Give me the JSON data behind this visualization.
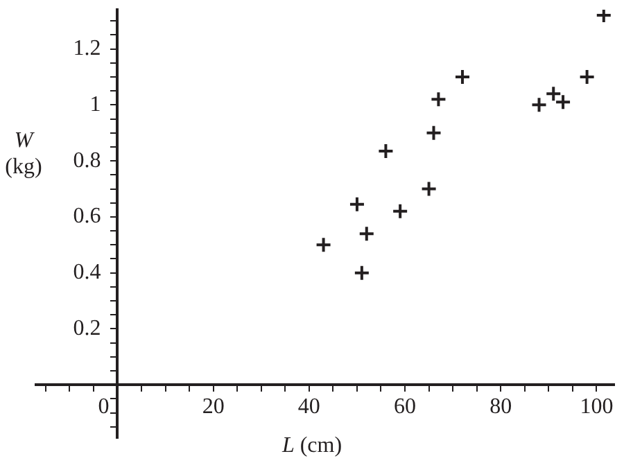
{
  "chart_data": {
    "type": "scatter",
    "xlabel": "L (cm)",
    "ylabel": "W (kg)",
    "marker": "cross",
    "grid": false,
    "legend": false,
    "xlim": [
      -17,
      103.7
    ],
    "ylim": [
      -0.19,
      1.34
    ],
    "xticks": [
      {
        "value": -15,
        "label": null
      },
      {
        "value": -10,
        "label": null
      },
      {
        "value": -5,
        "label": null
      },
      0,
      {
        "value": 5,
        "label": null
      },
      {
        "value": 10,
        "label": null
      },
      {
        "value": 15,
        "label": null
      },
      20,
      {
        "value": 25,
        "label": null
      },
      {
        "value": 30,
        "label": null
      },
      {
        "value": 35,
        "label": null
      },
      40,
      {
        "value": 45,
        "label": null
      },
      {
        "value": 50,
        "label": null
      },
      {
        "value": 55,
        "label": null
      },
      60,
      {
        "value": 65,
        "label": null
      },
      {
        "value": 70,
        "label": null
      },
      {
        "value": 75,
        "label": null
      },
      80,
      {
        "value": 85,
        "label": null
      },
      {
        "value": 90,
        "label": null
      },
      {
        "value": 95,
        "label": null
      },
      100
    ],
    "yticks": [
      {
        "value": -0.15,
        "label": null
      },
      {
        "value": -0.1,
        "label": null
      },
      {
        "value": -0.05,
        "label": null
      },
      {
        "value": 0.05,
        "label": null
      },
      {
        "value": 0.1,
        "label": null
      },
      {
        "value": 0.15,
        "label": null
      },
      0.2,
      {
        "value": 0.25,
        "label": null
      },
      {
        "value": 0.3,
        "label": null
      },
      {
        "value": 0.35,
        "label": null
      },
      0.4,
      {
        "value": 0.45,
        "label": null
      },
      {
        "value": 0.5,
        "label": null
      },
      {
        "value": 0.55,
        "label": null
      },
      0.6,
      {
        "value": 0.65,
        "label": null
      },
      {
        "value": 0.7,
        "label": null
      },
      {
        "value": 0.75,
        "label": null
      },
      0.8,
      {
        "value": 0.85,
        "label": null
      },
      {
        "value": 0.9,
        "label": null
      },
      {
        "value": 0.95,
        "label": null
      },
      1,
      {
        "value": 1.05,
        "label": null
      },
      {
        "value": 1.1,
        "label": null
      },
      {
        "value": 1.15,
        "label": null
      },
      1.2,
      {
        "value": 1.25,
        "label": null
      },
      {
        "value": 1.3,
        "label": null
      }
    ],
    "series": [
      {
        "color": "#231f20",
        "x": [
          43,
          50,
          52,
          51,
          56,
          59,
          65,
          66,
          67,
          72,
          88,
          91,
          93,
          98,
          101.5
        ],
        "values": [
          0.5,
          0.645,
          0.54,
          0.4,
          0.835,
          0.62,
          0.7,
          0.9,
          1.02,
          1.1,
          1.0,
          1.04,
          1.01,
          1.1,
          1.32
        ]
      }
    ]
  }
}
